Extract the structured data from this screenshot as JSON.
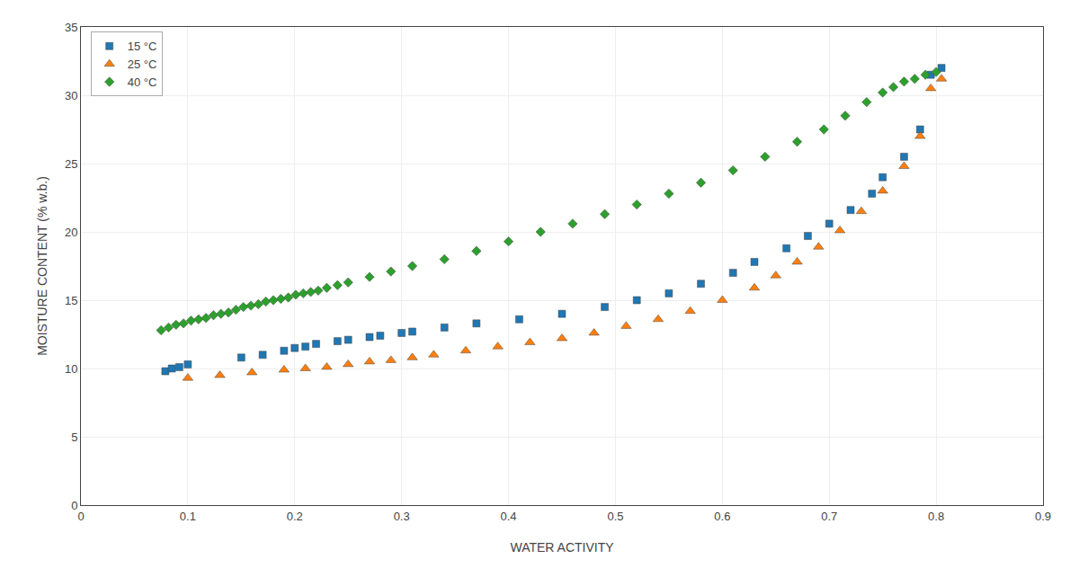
{
  "chart_data": {
    "type": "scatter",
    "xlabel": "WATER ACTIVITY",
    "ylabel": "MOISTURE CONTENT (% w.b.)",
    "xlim": [
      0,
      0.9
    ],
    "ylim": [
      0,
      35
    ],
    "xticks": [
      0,
      0.1,
      0.2,
      0.3,
      0.4,
      0.5,
      0.6,
      0.7,
      0.8,
      0.9
    ],
    "yticks": [
      0,
      5,
      10,
      15,
      20,
      25,
      30,
      35
    ],
    "grid": true,
    "legend": "upper left",
    "series": [
      {
        "name": "15 °C",
        "marker": "square",
        "x": [
          0.079,
          0.085,
          0.092,
          0.1,
          0.15,
          0.17,
          0.19,
          0.2,
          0.21,
          0.22,
          0.24,
          0.25,
          0.27,
          0.28,
          0.3,
          0.31,
          0.34,
          0.37,
          0.41,
          0.45,
          0.49,
          0.52,
          0.55,
          0.58,
          0.61,
          0.63,
          0.66,
          0.68,
          0.7,
          0.72,
          0.74,
          0.75,
          0.77,
          0.785,
          0.795,
          0.805
        ],
        "values": [
          9.8,
          10.0,
          10.1,
          10.3,
          10.8,
          11.0,
          11.3,
          11.5,
          11.6,
          11.8,
          12.0,
          12.1,
          12.3,
          12.4,
          12.6,
          12.7,
          13.0,
          13.3,
          13.6,
          14.0,
          14.5,
          15.0,
          15.5,
          16.2,
          17.0,
          17.8,
          18.8,
          19.7,
          20.6,
          21.6,
          22.8,
          24.0,
          25.5,
          27.5,
          31.5,
          32.0
        ]
      },
      {
        "name": "25 °C",
        "marker": "triangle",
        "x": [
          0.1,
          0.13,
          0.16,
          0.19,
          0.21,
          0.23,
          0.25,
          0.27,
          0.29,
          0.31,
          0.33,
          0.36,
          0.39,
          0.42,
          0.45,
          0.48,
          0.51,
          0.54,
          0.57,
          0.6,
          0.63,
          0.65,
          0.67,
          0.69,
          0.71,
          0.73,
          0.75,
          0.77,
          0.785,
          0.795,
          0.805
        ],
        "values": [
          9.3,
          9.5,
          9.7,
          9.9,
          10.0,
          10.1,
          10.3,
          10.5,
          10.6,
          10.8,
          11.0,
          11.3,
          11.6,
          11.9,
          12.2,
          12.6,
          13.1,
          13.6,
          14.2,
          15.0,
          15.9,
          16.8,
          17.8,
          18.9,
          20.1,
          21.5,
          23.0,
          24.8,
          27.0,
          30.5,
          31.2
        ]
      },
      {
        "name": "40 °C",
        "marker": "diamond",
        "x": [
          0.075,
          0.082,
          0.089,
          0.096,
          0.103,
          0.11,
          0.117,
          0.124,
          0.131,
          0.138,
          0.145,
          0.152,
          0.159,
          0.166,
          0.173,
          0.18,
          0.187,
          0.194,
          0.201,
          0.208,
          0.215,
          0.222,
          0.23,
          0.24,
          0.25,
          0.27,
          0.29,
          0.31,
          0.34,
          0.37,
          0.4,
          0.43,
          0.46,
          0.49,
          0.52,
          0.55,
          0.58,
          0.61,
          0.64,
          0.67,
          0.695,
          0.715,
          0.735,
          0.75,
          0.76,
          0.77,
          0.78,
          0.79,
          0.8
        ],
        "values": [
          12.8,
          13.0,
          13.2,
          13.3,
          13.5,
          13.6,
          13.7,
          13.9,
          14.0,
          14.1,
          14.3,
          14.5,
          14.6,
          14.7,
          14.9,
          15.0,
          15.1,
          15.2,
          15.4,
          15.5,
          15.6,
          15.7,
          15.9,
          16.1,
          16.3,
          16.7,
          17.1,
          17.5,
          18.0,
          18.6,
          19.3,
          20.0,
          20.6,
          21.3,
          22.0,
          22.8,
          23.6,
          24.5,
          25.5,
          26.6,
          27.5,
          28.5,
          29.5,
          30.2,
          30.6,
          31.0,
          31.2,
          31.5,
          31.7
        ]
      }
    ]
  }
}
